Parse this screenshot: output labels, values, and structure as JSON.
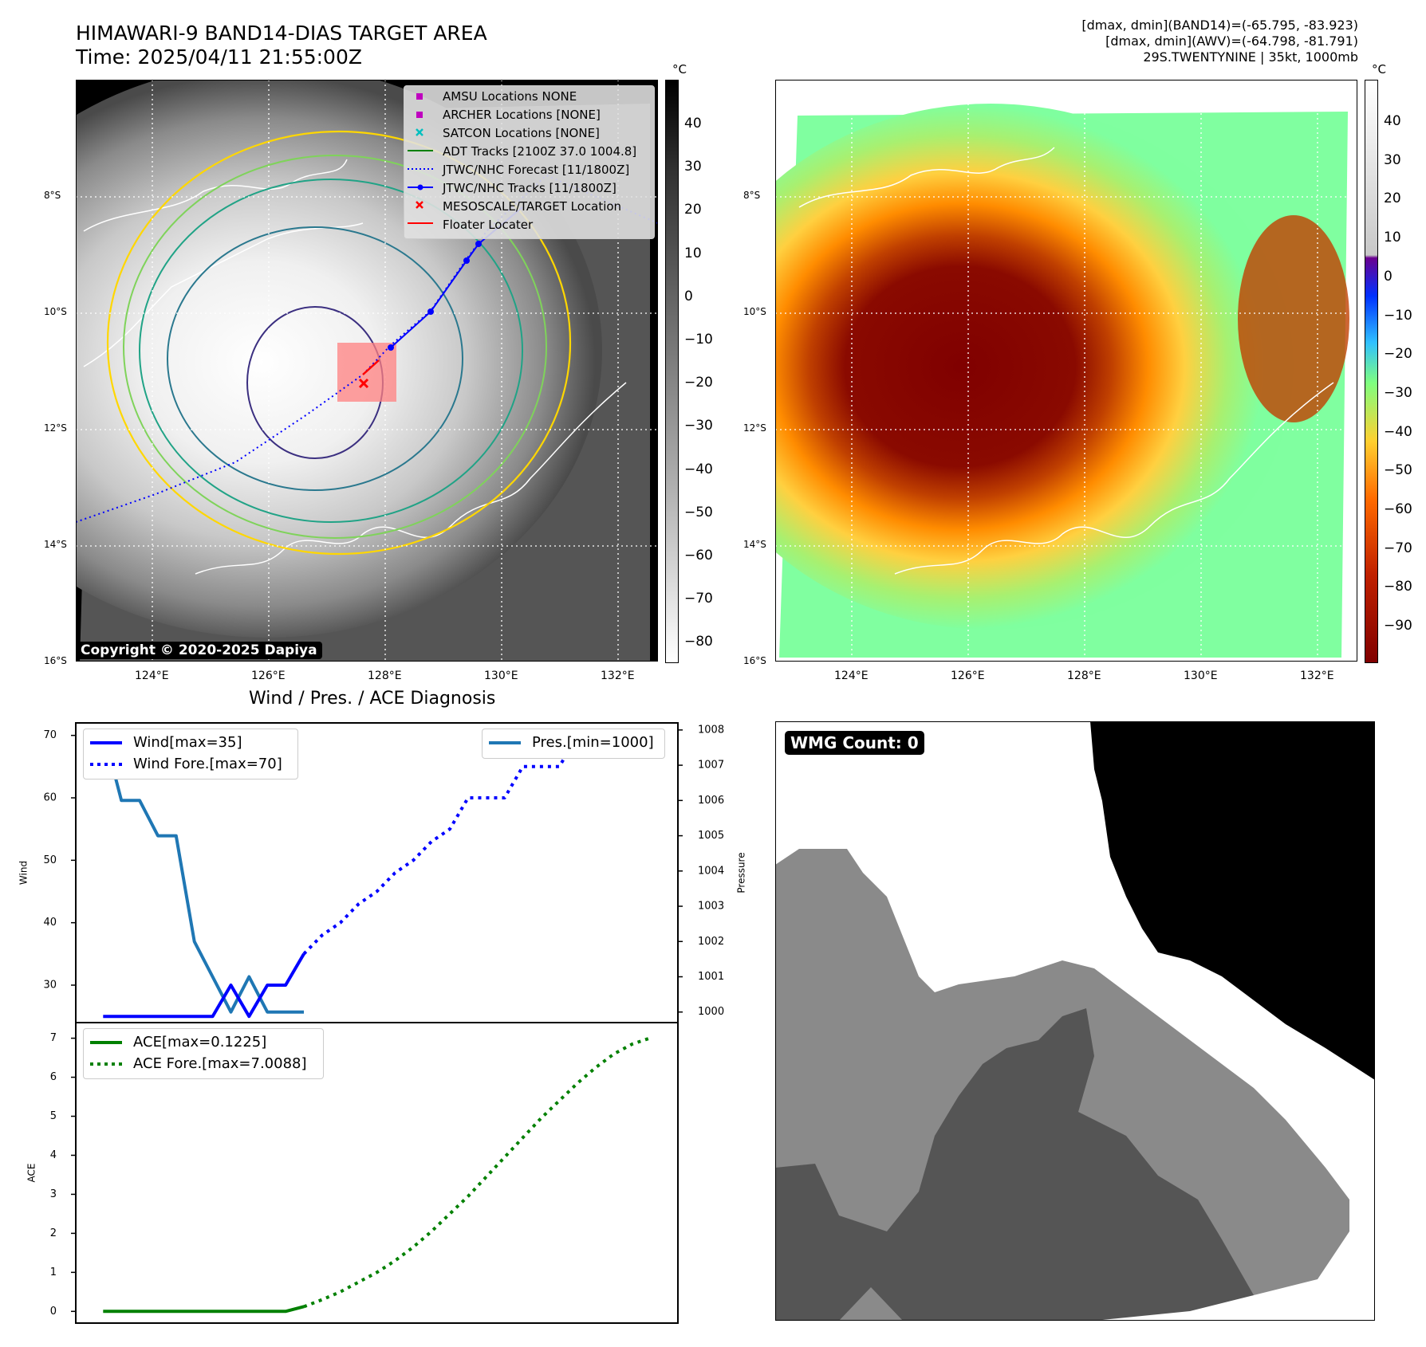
{
  "header": {
    "title_line1": "HIMAWARI-9 BAND14-DIAS TARGET AREA",
    "title_line2": "Time: 2025/04/11 21:55:00Z",
    "right_line1": "[dmax, dmin](BAND14)=(-65.795, -83.923)",
    "right_line2": "[dmax, dmin](AWV)=(-64.798, -81.791)",
    "right_line3": "29S.TWENTYNINE | 35kt, 1000mb"
  },
  "map": {
    "lat_labels": [
      "8°S",
      "10°S",
      "12°S",
      "14°S",
      "16°S"
    ],
    "lon_labels": [
      "124°E",
      "126°E",
      "128°E",
      "130°E",
      "132°E"
    ],
    "copyright": "Copyright © 2020-2025 Dapiya",
    "legend": [
      {
        "label": "AMSU Locations NONE",
        "marker": "square",
        "color": "#bf00bf"
      },
      {
        "label": "ARCHER Locations [NONE]",
        "marker": "square",
        "color": "#bf00bf"
      },
      {
        "label": "SATCON Locations [NONE]",
        "marker": "x",
        "color": "#00bfbf"
      },
      {
        "label": "ADT Tracks [2100Z 37.0 1004.8]",
        "marker": "line",
        "color": "#008000"
      },
      {
        "label": "JTWC/NHC Forecast [11/1800Z]",
        "marker": "dotted",
        "color": "#0000ff"
      },
      {
        "label": "JTWC/NHC Tracks [11/1800Z]",
        "marker": "line-dot",
        "color": "#0000ff"
      },
      {
        "label": "MESOSCALE/TARGET Location",
        "marker": "x",
        "color": "#ff0000"
      },
      {
        "label": "Floater Locater",
        "marker": "line",
        "color": "#ff0000"
      }
    ]
  },
  "colorbar_left": {
    "unit": "°C",
    "ticks": [
      "40",
      "30",
      "20",
      "10",
      "0",
      "−10",
      "−20",
      "−30",
      "−40",
      "−50",
      "−60",
      "−70",
      "−80"
    ],
    "colors": [
      "#000000",
      "#ffffff"
    ]
  },
  "colorbar_right": {
    "unit": "°C",
    "ticks": [
      "40",
      "30",
      "20",
      "10",
      "0",
      "−10",
      "−20",
      "−30",
      "−40",
      "−50",
      "−60",
      "−70",
      "−80",
      "−90"
    ],
    "colors": [
      "#800000",
      "#ff6a00",
      "#ffd030",
      "#7fff7f",
      "#30c0ff",
      "#0030ff",
      "#6a0090"
    ]
  },
  "diag": {
    "title": "Wind / Pres. / ACE Diagnosis",
    "wind_ylabel": "Wind",
    "pres_ylabel": "Pressure",
    "ace_ylabel": "ACE",
    "wind_ticks": [
      "30",
      "40",
      "50",
      "60",
      "70"
    ],
    "pres_ticks": [
      "1000",
      "1001",
      "1002",
      "1003",
      "1004",
      "1005",
      "1006",
      "1007",
      "1008"
    ],
    "ace_ticks": [
      "0",
      "1",
      "2",
      "3",
      "4",
      "5",
      "6",
      "7"
    ],
    "wmg_label": "WMG Count: 0"
  },
  "chart_data": [
    {
      "type": "line",
      "title": "Wind / Pres. / ACE Diagnosis",
      "ylabel": "Wind",
      "y2label": "Pressure",
      "ylim": [
        24,
        72
      ],
      "y2lim": [
        999.7,
        1008.2
      ],
      "series": [
        {
          "name": "Wind[max=35]",
          "axis": "left",
          "style": "solid",
          "color": "#0000ff",
          "x": [
            0,
            1,
            2,
            3,
            4,
            5,
            6,
            7,
            8,
            9,
            10,
            11
          ],
          "y": [
            25,
            25,
            25,
            25,
            25,
            25,
            25,
            30,
            25,
            30,
            30,
            35
          ]
        },
        {
          "name": "Wind Fore.[max=70]",
          "axis": "left",
          "style": "dotted",
          "color": "#0000ff",
          "x": [
            11,
            12,
            13,
            14,
            15,
            16,
            17,
            18,
            19,
            20,
            21,
            22,
            23,
            24,
            25,
            26,
            27,
            28,
            29,
            30
          ],
          "y": [
            35,
            38,
            40,
            43,
            45,
            48,
            50,
            53,
            55,
            60,
            60,
            60,
            65,
            65,
            65,
            70,
            70,
            70,
            70,
            67
          ]
        },
        {
          "name": "Pres.[min=1000]",
          "axis": "right",
          "style": "solid",
          "color": "#1f77b4",
          "x": [
            0,
            1,
            2,
            3,
            4,
            5,
            6,
            7,
            8,
            9,
            10,
            11
          ],
          "y": [
            1008,
            1006,
            1006,
            1005,
            1005,
            1002,
            1001,
            1000,
            1001,
            1000,
            1000,
            1000
          ]
        }
      ]
    },
    {
      "type": "line",
      "ylabel": "ACE",
      "ylim": [
        -0.3,
        7.4
      ],
      "series": [
        {
          "name": "ACE[max=0.1225]",
          "style": "solid",
          "color": "#008000",
          "x": [
            0,
            1,
            2,
            3,
            4,
            5,
            6,
            7,
            8,
            9,
            10,
            11
          ],
          "y": [
            0,
            0,
            0,
            0,
            0,
            0,
            0,
            0,
            0,
            0,
            0,
            0.1225
          ]
        },
        {
          "name": "ACE Fore.[max=7.0088]",
          "style": "dotted",
          "color": "#008000",
          "x": [
            11,
            12,
            13,
            14,
            15,
            16,
            17,
            18,
            19,
            20,
            21,
            22,
            23,
            24,
            25,
            26,
            27,
            28,
            29,
            30
          ],
          "y": [
            0.12,
            0.3,
            0.5,
            0.75,
            1.0,
            1.3,
            1.65,
            2.05,
            2.5,
            2.95,
            3.45,
            3.95,
            4.45,
            4.95,
            5.4,
            5.85,
            6.25,
            6.6,
            6.85,
            7.0088
          ]
        }
      ]
    }
  ]
}
